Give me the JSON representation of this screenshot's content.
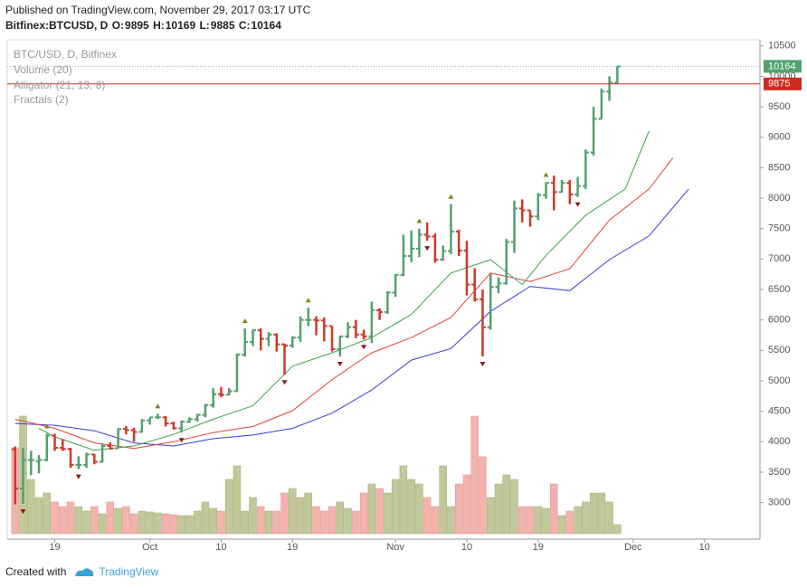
{
  "header": {
    "published": "Published on TradingView.com, November 29, 2017 03:17 UTC",
    "symbol": "Bitfinex:BTCUSD, D",
    "ohlc_labels": [
      "O:",
      "H:",
      "L:",
      "C:"
    ]
  },
  "footer": {
    "created": "Created with",
    "brand": "TradingView"
  },
  "chart_data": {
    "type": "ohlc",
    "title": "BTC/USD, D, Bitfinex",
    "x": [
      "2017-09-14",
      "2017-09-15",
      "2017-09-16",
      "2017-09-17",
      "2017-09-18",
      "2017-09-19",
      "2017-09-20",
      "2017-09-21",
      "2017-09-22",
      "2017-09-23",
      "2017-09-24",
      "2017-09-25",
      "2017-09-26",
      "2017-09-27",
      "2017-09-28",
      "2017-09-29",
      "2017-09-30",
      "2017-10-01",
      "2017-10-02",
      "2017-10-03",
      "2017-10-04",
      "2017-10-05",
      "2017-10-06",
      "2017-10-07",
      "2017-10-08",
      "2017-10-09",
      "2017-10-10",
      "2017-10-11",
      "2017-10-12",
      "2017-10-13",
      "2017-10-14",
      "2017-10-15",
      "2017-10-16",
      "2017-10-17",
      "2017-10-18",
      "2017-10-19",
      "2017-10-20",
      "2017-10-21",
      "2017-10-22",
      "2017-10-23",
      "2017-10-24",
      "2017-10-25",
      "2017-10-26",
      "2017-10-27",
      "2017-10-28",
      "2017-10-29",
      "2017-10-30",
      "2017-10-31",
      "2017-11-01",
      "2017-11-02",
      "2017-11-03",
      "2017-11-04",
      "2017-11-05",
      "2017-11-06",
      "2017-11-07",
      "2017-11-08",
      "2017-11-09",
      "2017-11-10",
      "2017-11-11",
      "2017-11-12",
      "2017-11-13",
      "2017-11-14",
      "2017-11-15",
      "2017-11-16",
      "2017-11-17",
      "2017-11-18",
      "2017-11-19",
      "2017-11-20",
      "2017-11-21",
      "2017-11-22",
      "2017-11-23",
      "2017-11-24",
      "2017-11-25",
      "2017-11-26",
      "2017-11-27",
      "2017-11-28",
      "2017-11-29"
    ],
    "ohlc": {
      "open": [
        3875,
        3230,
        3700,
        3680,
        3700,
        4100,
        3900,
        3880,
        3620,
        3620,
        3790,
        3670,
        3930,
        3890,
        4210,
        4190,
        4160,
        4350,
        4400,
        4400,
        4300,
        4220,
        4330,
        4370,
        4440,
        4600,
        4780,
        4770,
        4830,
        5430,
        5640,
        5830,
        5690,
        5760,
        5600,
        5580,
        5710,
        6000,
        6000,
        5990,
        5900,
        5520,
        5730,
        5880,
        5760,
        5730,
        6160,
        6130,
        6450,
        6740,
        7050,
        7170,
        7400,
        7370,
        6990,
        7130,
        7450,
        7140,
        6580,
        6340,
        5880,
        6540,
        6600,
        7280,
        7830,
        7800,
        7700,
        8050,
        8250,
        8100,
        8250,
        8060,
        8200,
        8750,
        9300,
        9750,
        9895
      ],
      "high": [
        3920,
        3900,
        3850,
        3780,
        4130,
        4130,
        4040,
        3900,
        3760,
        3820,
        3800,
        3960,
        3990,
        4220,
        4260,
        4230,
        4370,
        4400,
        4460,
        4420,
        4330,
        4350,
        4400,
        4460,
        4620,
        4880,
        4900,
        4880,
        5450,
        5860,
        5840,
        5860,
        5800,
        5780,
        5610,
        5730,
        6060,
        6200,
        6060,
        6040,
        5900,
        5740,
        5960,
        6000,
        5840,
        6300,
        6190,
        6470,
        6750,
        7400,
        7470,
        7500,
        7600,
        7420,
        7220,
        7900,
        7480,
        7300,
        6850,
        6500,
        6760,
        6700,
        7330,
        7960,
        7980,
        7800,
        8080,
        8260,
        8370,
        8300,
        8300,
        8350,
        8800,
        9500,
        9800,
        10000,
        10169
      ],
      "low": [
        2970,
        2980,
        3450,
        3480,
        3680,
        3850,
        3850,
        3570,
        3550,
        3570,
        3630,
        3660,
        3870,
        3890,
        4120,
        4000,
        4150,
        4280,
        4370,
        4250,
        4200,
        4150,
        4310,
        4330,
        4400,
        4560,
        4730,
        4760,
        4820,
        5400,
        5570,
        5500,
        5570,
        5480,
        5100,
        5540,
        5640,
        5900,
        5750,
        5650,
        5480,
        5400,
        5700,
        5700,
        5680,
        5620,
        6000,
        6100,
        6380,
        6720,
        6950,
        7030,
        7300,
        6940,
        6970,
        7080,
        7050,
        6400,
        6300,
        5400,
        5840,
        6440,
        6580,
        7100,
        7600,
        7530,
        7640,
        7990,
        7800,
        8090,
        7900,
        8020,
        8150,
        8700,
        9300,
        9600,
        9885
      ],
      "close": [
        3230,
        3700,
        3700,
        3700,
        4100,
        3900,
        3880,
        3620,
        3620,
        3790,
        3670,
        3930,
        3890,
        4210,
        4190,
        4160,
        4350,
        4400,
        4400,
        4300,
        4220,
        4330,
        4370,
        4440,
        4600,
        4780,
        4770,
        4830,
        5430,
        5640,
        5830,
        5690,
        5760,
        5600,
        5580,
        5710,
        6000,
        6000,
        5990,
        5900,
        5520,
        5730,
        5880,
        5760,
        5730,
        6160,
        6130,
        6450,
        6740,
        7050,
        7170,
        7400,
        7370,
        6990,
        7130,
        7450,
        7140,
        6580,
        6340,
        5880,
        6540,
        6600,
        7280,
        7830,
        7800,
        7700,
        8050,
        8250,
        8100,
        8250,
        8060,
        8200,
        8750,
        9300,
        9750,
        9900,
        10164
      ],
      "up_color": "#53a06e",
      "down_color": "#cf3a2a"
    },
    "volume": {
      "name": "Volume (20)",
      "up_color": "#c2c899",
      "down_color": "#f2b3ae",
      "values": [
        95,
        130,
        60,
        40,
        45,
        35,
        30,
        35,
        30,
        25,
        30,
        22,
        35,
        28,
        30,
        22,
        25,
        24,
        23,
        22,
        21,
        20,
        20,
        25,
        35,
        28,
        25,
        60,
        75,
        25,
        40,
        30,
        25,
        25,
        45,
        50,
        40,
        45,
        30,
        25,
        30,
        35,
        28,
        25,
        45,
        55,
        50,
        45,
        60,
        75,
        60,
        55,
        40,
        30,
        75,
        30,
        55,
        65,
        130,
        85,
        40,
        55,
        65,
        60,
        30,
        30,
        30,
        28,
        55,
        20,
        25,
        30,
        35,
        45,
        45,
        35,
        10
      ]
    },
    "alligator": {
      "name": "Alligator (21, 13, 8)",
      "lines": [
        {
          "color": "#3b3bd6",
          "x": [
            "2017-09-14",
            "2017-09-19",
            "2017-09-24",
            "2017-09-29",
            "2017-10-04",
            "2017-10-09",
            "2017-10-14",
            "2017-10-19",
            "2017-10-24",
            "2017-10-29",
            "2017-11-03",
            "2017-11-08",
            "2017-11-13",
            "2017-11-18",
            "2017-11-23",
            "2017-11-28",
            "2017-12-03",
            "2017-12-08"
          ],
          "values": [
            4300,
            4270,
            4180,
            3980,
            3930,
            4050,
            4110,
            4220,
            4470,
            4850,
            5340,
            5530,
            6140,
            6550,
            6480,
            6990,
            7380,
            8150
          ]
        },
        {
          "color": "#e0423a",
          "x": [
            "2017-09-14",
            "2017-09-19",
            "2017-09-24",
            "2017-09-29",
            "2017-10-04",
            "2017-10-09",
            "2017-10-14",
            "2017-10-19",
            "2017-10-24",
            "2017-10-29",
            "2017-11-03",
            "2017-11-08",
            "2017-11-13",
            "2017-11-18",
            "2017-11-23",
            "2017-11-28",
            "2017-12-03",
            "2017-12-06"
          ],
          "values": [
            4370,
            4220,
            3980,
            3890,
            4000,
            4150,
            4250,
            4510,
            5020,
            5460,
            5710,
            6040,
            6770,
            6630,
            6840,
            7640,
            8150,
            8660
          ]
        },
        {
          "color": "#3aa34a",
          "x": [
            "2017-09-17",
            "2017-09-19",
            "2017-09-24",
            "2017-09-29",
            "2017-10-04",
            "2017-10-09",
            "2017-10-14",
            "2017-10-19",
            "2017-10-24",
            "2017-10-29",
            "2017-11-03",
            "2017-11-08",
            "2017-11-13",
            "2017-11-17",
            "2017-11-20",
            "2017-11-25",
            "2017-11-30",
            "2017-12-03"
          ],
          "values": [
            4220,
            4080,
            3860,
            3930,
            4120,
            4370,
            4590,
            5240,
            5460,
            5710,
            6090,
            6770,
            6990,
            6580,
            7060,
            7720,
            8150,
            9100
          ]
        }
      ]
    },
    "fractals": {
      "name": "Fractals (2)",
      "up_color": "#7a8a1a",
      "down_color": "#8a1a1a",
      "up": [
        "2017-09-18",
        "2017-10-02",
        "2017-10-13",
        "2017-10-21",
        "2017-11-04",
        "2017-11-08",
        "2017-11-20"
      ],
      "down": [
        "2017-09-15",
        "2017-09-22",
        "2017-10-05",
        "2017-10-18",
        "2017-10-25",
        "2017-10-28",
        "2017-11-05",
        "2017-11-12",
        "2017-11-24"
      ]
    },
    "price_line": {
      "value": 9875,
      "color": "#d12a1f"
    },
    "last_color": "#53a06e",
    "ylim": [
      2400,
      10600
    ],
    "yticks": [
      3000,
      3500,
      4000,
      4500,
      5000,
      5500,
      6000,
      6500,
      7000,
      7500,
      8000,
      8500,
      9000,
      9500,
      10000,
      10500
    ],
    "xlim": [
      "2017-09-13",
      "2017-12-17"
    ],
    "xticks": [
      {
        "value": "2017-09-19",
        "label": "19"
      },
      {
        "value": "2017-10-01",
        "label": "Oct"
      },
      {
        "value": "2017-10-10",
        "label": "10"
      },
      {
        "value": "2017-10-19",
        "label": "19"
      },
      {
        "value": "2017-11-01",
        "label": "Nov"
      },
      {
        "value": "2017-11-10",
        "label": "10"
      },
      {
        "value": "2017-11-19",
        "label": "19"
      },
      {
        "value": "2017-12-01",
        "label": "Dec"
      },
      {
        "value": "2017-12-10",
        "label": "10"
      }
    ],
    "grid": false
  }
}
